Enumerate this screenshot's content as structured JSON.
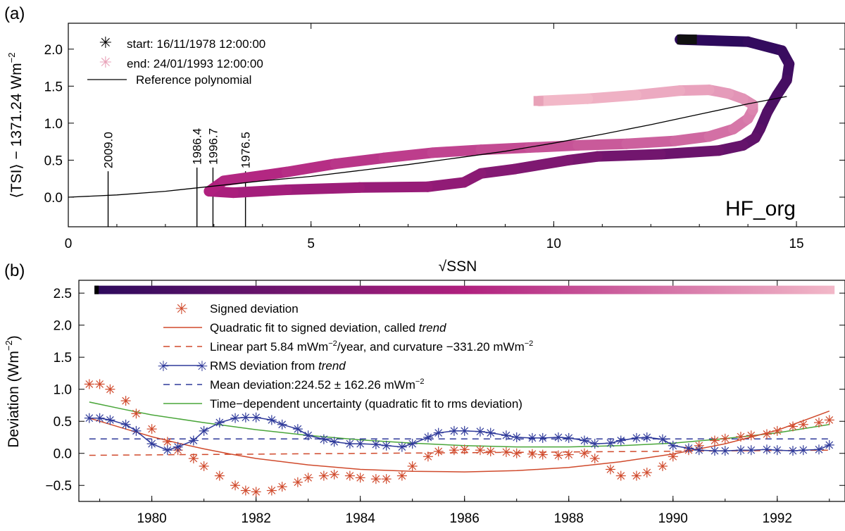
{
  "chart_data": [
    {
      "panel_label": "(a)",
      "type": "line",
      "xlabel": "√SSN",
      "ylabel_parts": [
        "⟨TSI⟩ − 1371.24 Wm",
        "−2"
      ],
      "xlim": [
        0,
        16
      ],
      "ylim": [
        -0.4,
        2.35
      ],
      "xticks": [
        "0",
        "5",
        "10",
        "15"
      ],
      "xtick_values": [
        0,
        5,
        10,
        15
      ],
      "yticks": [
        "0.0",
        "0.5",
        "1.0",
        "1.5",
        "2.0"
      ],
      "ytick_values": [
        0,
        0.5,
        1.0,
        1.5,
        2.0
      ],
      "annotation": "HF_org",
      "legend": [
        {
          "marker": "asterisk",
          "color": "#111111",
          "label": "start: 16/11/1978 12:00:00"
        },
        {
          "marker": "asterisk",
          "color": "#e8a2b8",
          "label": "end:  24/01/1993 12:00:00"
        },
        {
          "marker": "line",
          "color": "#000000",
          "label": "Reference polynomial"
        }
      ],
      "minima": [
        {
          "label": "2009.0",
          "x": 0.82,
          "y_top": 0.35
        },
        {
          "label": "1986.4",
          "x": 2.65,
          "y_top": 0.4
        },
        {
          "label": "1996.7",
          "x": 2.98,
          "y_top": 0.4
        },
        {
          "label": "1976.5",
          "x": 3.65,
          "y_top": 0.35
        }
      ],
      "reference_polynomial": {
        "x": [
          0,
          1,
          2,
          3,
          4,
          5,
          6,
          7,
          8,
          9,
          10,
          11,
          12,
          13,
          14,
          14.8
        ],
        "y": [
          0.0,
          0.03,
          0.08,
          0.15,
          0.22,
          0.28,
          0.36,
          0.44,
          0.53,
          0.62,
          0.73,
          0.85,
          0.98,
          1.12,
          1.26,
          1.36
        ]
      },
      "trajectory": {
        "colormap_start": "#2d0a5c",
        "colormap_end": "#f2b8c8",
        "x": [
          12.6,
          14.0,
          14.7,
          14.85,
          14.8,
          14.6,
          14.4,
          14.25,
          14.15,
          13.9,
          13.4,
          12.2,
          10.9,
          10.3,
          9.2,
          8.5,
          8.15,
          7.4,
          6.0,
          4.5,
          3.4,
          2.9,
          3.2,
          4.5,
          5.5,
          6.5,
          7.5,
          8.5,
          9.5,
          10.5,
          11.5,
          12.5,
          13.2,
          13.7,
          14.0,
          14.1,
          14.1,
          13.9,
          13.6,
          13.2,
          12.6,
          11.7,
          10.7,
          9.7
        ],
        "y": [
          2.13,
          2.1,
          1.98,
          1.8,
          1.58,
          1.38,
          1.15,
          0.92,
          0.8,
          0.7,
          0.63,
          0.58,
          0.55,
          0.5,
          0.38,
          0.32,
          0.2,
          0.14,
          0.13,
          0.1,
          0.06,
          0.08,
          0.22,
          0.34,
          0.45,
          0.53,
          0.6,
          0.64,
          0.67,
          0.7,
          0.72,
          0.76,
          0.82,
          0.92,
          1.06,
          1.18,
          1.25,
          1.33,
          1.4,
          1.45,
          1.44,
          1.38,
          1.33,
          1.3
        ]
      }
    },
    {
      "panel_label": "(b)",
      "type": "line",
      "xlabel": "",
      "ylabel_parts": [
        "Deviation (Wm",
        "−2",
        ")"
      ],
      "xlim": [
        1978.6,
        1993.3
      ],
      "ylim": [
        -0.75,
        2.7
      ],
      "xticks": [
        "1980",
        "1982",
        "1984",
        "1986",
        "1988",
        "1990",
        "1992"
      ],
      "xtick_values": [
        1980,
        1982,
        1984,
        1986,
        1988,
        1990,
        1992
      ],
      "yticks": [
        "−0.5",
        "0.0",
        "0.5",
        "1.0",
        "1.5",
        "2.0",
        "2.5"
      ],
      "ytick_values": [
        -0.5,
        0,
        0.5,
        1.0,
        1.5,
        2.0,
        2.5
      ],
      "time_colorbar": {
        "start": 1978.9,
        "end": 1993.1,
        "y": 2.55
      },
      "legend": [
        {
          "marker": "asterisk",
          "color": "#d04a2c",
          "label": "Signed deviation"
        },
        {
          "marker": "line",
          "color": "#d04a2c",
          "label_parts": [
            "Quadratic fit to signed deviation, called ",
            "trend",
            ""
          ]
        },
        {
          "marker": "dashed",
          "color": "#d04a2c",
          "label_parts": [
            "Linear part 5.84 mWm",
            "−2",
            "/year, and curvature −331.20 mWm",
            "−2",
            ""
          ]
        },
        {
          "marker": "line-asterisk",
          "color": "#2f3a9a",
          "label_parts": [
            "RMS deviation from ",
            "trend",
            ""
          ]
        },
        {
          "marker": "dashed",
          "color": "#2f3a9a",
          "label_parts": [
            "Mean deviation:224.52 ± 162.26 mWm",
            "−2",
            ""
          ]
        },
        {
          "marker": "line",
          "color": "#4aa63a",
          "label": "Time−dependent uncertainty (quadratic fit to rms deviation)"
        }
      ],
      "series": [
        {
          "name": "Signed deviation",
          "color": "#d04a2c",
          "x": [
            1978.8,
            1979.0,
            1979.2,
            1979.5,
            1979.7,
            1980.0,
            1980.3,
            1980.5,
            1980.8,
            1981.0,
            1981.3,
            1981.6,
            1981.8,
            1982.0,
            1982.3,
            1982.5,
            1982.8,
            1983.0,
            1983.3,
            1983.5,
            1983.8,
            1984.0,
            1984.3,
            1984.5,
            1984.8,
            1985.0,
            1985.3,
            1985.5,
            1985.8,
            1986.0,
            1986.3,
            1986.5,
            1986.8,
            1987.0,
            1987.3,
            1987.5,
            1987.8,
            1988.0,
            1988.3,
            1988.5,
            1988.8,
            1989.0,
            1989.3,
            1989.5,
            1989.8,
            1990.0,
            1990.3,
            1990.5,
            1990.8,
            1991.0,
            1991.3,
            1991.5,
            1991.8,
            1992.0,
            1992.3,
            1992.5,
            1992.8,
            1993.0
          ],
          "y": [
            1.08,
            1.08,
            1.0,
            0.82,
            0.62,
            0.38,
            0.18,
            0.05,
            -0.08,
            -0.2,
            -0.35,
            -0.5,
            -0.58,
            -0.6,
            -0.58,
            -0.52,
            -0.45,
            -0.38,
            -0.35,
            -0.33,
            -0.35,
            -0.38,
            -0.4,
            -0.4,
            -0.35,
            -0.2,
            -0.05,
            0.03,
            0.05,
            0.06,
            0.05,
            0.03,
            0.02,
            0.0,
            -0.01,
            -0.02,
            -0.03,
            -0.02,
            0.0,
            -0.08,
            -0.25,
            -0.35,
            -0.35,
            -0.3,
            -0.2,
            -0.05,
            0.05,
            0.12,
            0.2,
            0.23,
            0.26,
            0.28,
            0.3,
            0.35,
            0.42,
            0.45,
            0.48,
            0.52
          ]
        },
        {
          "name": "RMS deviation from trend",
          "color": "#2f3a9a",
          "x": [
            1978.8,
            1979.0,
            1979.2,
            1979.5,
            1979.7,
            1980.0,
            1980.3,
            1980.5,
            1980.8,
            1981.0,
            1981.3,
            1981.6,
            1981.8,
            1982.0,
            1982.3,
            1982.5,
            1982.8,
            1983.0,
            1983.3,
            1983.5,
            1983.8,
            1984.0,
            1984.3,
            1984.5,
            1984.8,
            1985.0,
            1985.3,
            1985.5,
            1985.8,
            1986.0,
            1986.3,
            1986.5,
            1986.8,
            1987.0,
            1987.3,
            1987.5,
            1987.8,
            1988.0,
            1988.3,
            1988.5,
            1988.8,
            1989.0,
            1989.3,
            1989.5,
            1989.8,
            1990.0,
            1990.3,
            1990.5,
            1990.8,
            1991.0,
            1991.3,
            1991.5,
            1991.8,
            1992.0,
            1992.3,
            1992.5,
            1992.8,
            1993.0
          ],
          "y": [
            0.55,
            0.55,
            0.52,
            0.45,
            0.35,
            0.15,
            0.05,
            0.1,
            0.2,
            0.35,
            0.48,
            0.55,
            0.56,
            0.56,
            0.52,
            0.45,
            0.38,
            0.28,
            0.22,
            0.18,
            0.15,
            0.15,
            0.14,
            0.12,
            0.1,
            0.15,
            0.25,
            0.32,
            0.35,
            0.35,
            0.34,
            0.32,
            0.28,
            0.25,
            0.24,
            0.24,
            0.25,
            0.24,
            0.2,
            0.15,
            0.16,
            0.2,
            0.24,
            0.25,
            0.22,
            0.12,
            0.08,
            0.05,
            0.04,
            0.04,
            0.05,
            0.05,
            0.06,
            0.05,
            0.04,
            0.05,
            0.06,
            0.13
          ]
        },
        {
          "name": "Quadratic fit to signed deviation, called trend",
          "color": "#d04a2c",
          "x": [
            1978.8,
            1979.5,
            1980.0,
            1980.5,
            1981.0,
            1981.5,
            1982.0,
            1983.0,
            1984.0,
            1985.0,
            1986.0,
            1987.0,
            1988.0,
            1989.0,
            1990.0,
            1991.0,
            1992.0,
            1993.0
          ],
          "y": [
            0.55,
            0.38,
            0.26,
            0.16,
            0.07,
            -0.01,
            -0.08,
            -0.18,
            -0.25,
            -0.28,
            -0.29,
            -0.27,
            -0.22,
            -0.13,
            -0.01,
            0.15,
            0.36,
            0.66
          ]
        },
        {
          "name": "Time-dependent uncertainty",
          "color": "#4aa63a",
          "x": [
            1978.8,
            1979.5,
            1980.0,
            1981.0,
            1982.0,
            1983.0,
            1984.0,
            1985.0,
            1986.0,
            1987.0,
            1988.0,
            1989.0,
            1990.0,
            1991.0,
            1992.0,
            1993.0
          ],
          "y": [
            0.8,
            0.68,
            0.6,
            0.48,
            0.37,
            0.28,
            0.21,
            0.16,
            0.12,
            0.1,
            0.1,
            0.12,
            0.16,
            0.23,
            0.32,
            0.45
          ]
        },
        {
          "name": "Linear part",
          "color": "#d04a2c",
          "dashed": true,
          "x": [
            1978.8,
            1993.0
          ],
          "y": [
            -0.03,
            0.05
          ]
        },
        {
          "name": "Mean deviation",
          "color": "#2f3a9a",
          "dashed": true,
          "x": [
            1978.8,
            1993.0
          ],
          "y": [
            0.225,
            0.225
          ]
        }
      ]
    }
  ]
}
